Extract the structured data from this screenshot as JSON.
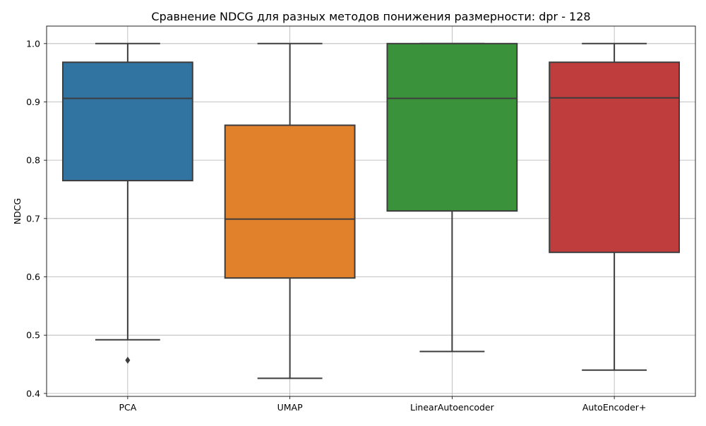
{
  "chart_data": {
    "type": "box",
    "title": "Сравнение NDCG для разных методов понижения размерности: dpr - 128",
    "xlabel": "",
    "ylabel": "NDCG",
    "ylim": [
      0.395,
      1.03
    ],
    "yticks": [
      "0.4",
      "0.5",
      "0.6",
      "0.7",
      "0.8",
      "0.9",
      "1.0"
    ],
    "grid": true,
    "categories": [
      "PCA",
      "UMAP",
      "LinearAutoencoder",
      "AutoEncoder+"
    ],
    "boxes": [
      {
        "label": "PCA",
        "whisker_low": 0.492,
        "q1": 0.765,
        "median": 0.906,
        "q3": 0.968,
        "whisker_high": 1.0,
        "outliers": [
          0.457
        ],
        "color": "#3274a1"
      },
      {
        "label": "UMAP",
        "whisker_low": 0.426,
        "q1": 0.598,
        "median": 0.699,
        "q3": 0.86,
        "whisker_high": 1.0,
        "outliers": [],
        "color": "#e1812c"
      },
      {
        "label": "LinearAutoencoder",
        "whisker_low": 0.472,
        "q1": 0.713,
        "median": 0.906,
        "q3": 1.0,
        "whisker_high": 1.0,
        "outliers": [],
        "color": "#3a923a"
      },
      {
        "label": "AutoEncoder+",
        "whisker_low": 0.44,
        "q1": 0.642,
        "median": 0.907,
        "q3": 0.968,
        "whisker_high": 1.0,
        "outliers": [],
        "color": "#c03d3e"
      }
    ]
  }
}
